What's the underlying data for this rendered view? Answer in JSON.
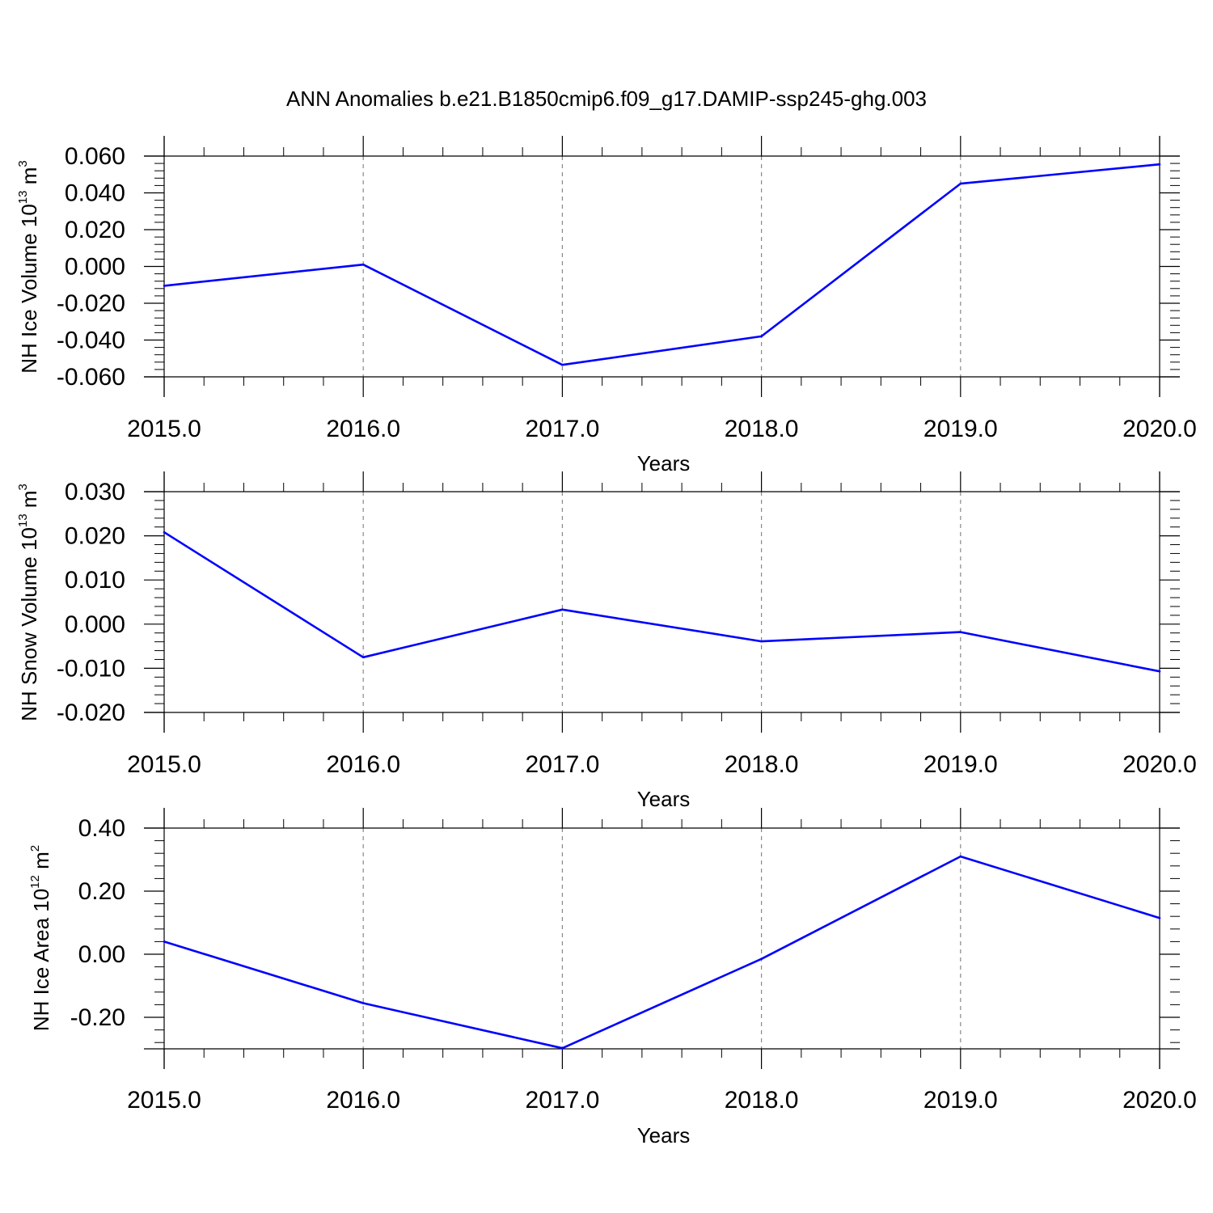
{
  "title": "ANN Anomalies b.e21.B1850cmip6.f09_g17.DAMIP-ssp245-ghg.003",
  "colors": {
    "line": "#0000ff",
    "axis": "#000000",
    "grid": "#888888"
  },
  "chart_data": [
    {
      "type": "line",
      "xlabel": "Years",
      "ylabel": {
        "text": "NH Ice Volume 10",
        "exponent": "13",
        "unit": " m",
        "unit_exponent": "3"
      },
      "x": [
        2015,
        2016,
        2017,
        2018,
        2019,
        2020
      ],
      "x_tick_labels": [
        "2015.0",
        "2016.0",
        "2017.0",
        "2018.0",
        "2019.0",
        "2020.0"
      ],
      "y": [
        -0.0105,
        0.001,
        -0.0535,
        -0.038,
        0.045,
        0.0555
      ],
      "y_tick_values": [
        0.06,
        0.04,
        0.02,
        0.0,
        -0.02,
        -0.04,
        -0.06
      ],
      "y_tick_labels": [
        "0.060",
        "0.040",
        "0.020",
        "0.000",
        "-0.020",
        "-0.040",
        "-0.060"
      ],
      "xlim": [
        2015,
        2020
      ],
      "ylim": [
        -0.06,
        0.06
      ],
      "grid": "vertical dashed at major x ticks"
    },
    {
      "type": "line",
      "xlabel": "Years",
      "ylabel": {
        "text": "NH Snow Volume 10",
        "exponent": "13",
        "unit": " m",
        "unit_exponent": "3"
      },
      "x": [
        2015,
        2016,
        2017,
        2018,
        2019,
        2020
      ],
      "x_tick_labels": [
        "2015.0",
        "2016.0",
        "2017.0",
        "2018.0",
        "2019.0",
        "2020.0"
      ],
      "y": [
        0.0208,
        -0.0075,
        0.0033,
        -0.0039,
        -0.0018,
        -0.0107
      ],
      "y_tick_values": [
        0.03,
        0.02,
        0.01,
        0.0,
        -0.01,
        -0.02
      ],
      "y_tick_labels": [
        "0.030",
        "0.020",
        "0.010",
        "0.000",
        "-0.010",
        "-0.020"
      ],
      "xlim": [
        2015,
        2020
      ],
      "ylim": [
        -0.02,
        0.03
      ],
      "grid": "vertical dashed at major x ticks"
    },
    {
      "type": "line",
      "xlabel": "Years",
      "ylabel": {
        "text": "NH Ice Area 10",
        "exponent": "12",
        "unit": " m",
        "unit_exponent": "2"
      },
      "x": [
        2015,
        2016,
        2017,
        2018,
        2019,
        2020
      ],
      "x_tick_labels": [
        "2015.0",
        "2016.0",
        "2017.0",
        "2018.0",
        "2019.0",
        "2020.0"
      ],
      "y": [
        0.04,
        -0.155,
        -0.298,
        -0.015,
        0.31,
        0.115
      ],
      "y_tick_values": [
        0.4,
        0.2,
        0.0,
        -0.2
      ],
      "y_tick_labels": [
        "0.40",
        "0.20",
        "0.00",
        "-0.20"
      ],
      "xlim": [
        2015,
        2020
      ],
      "ylim": [
        -0.3,
        0.4
      ],
      "grid": "vertical dashed at major x ticks"
    }
  ]
}
